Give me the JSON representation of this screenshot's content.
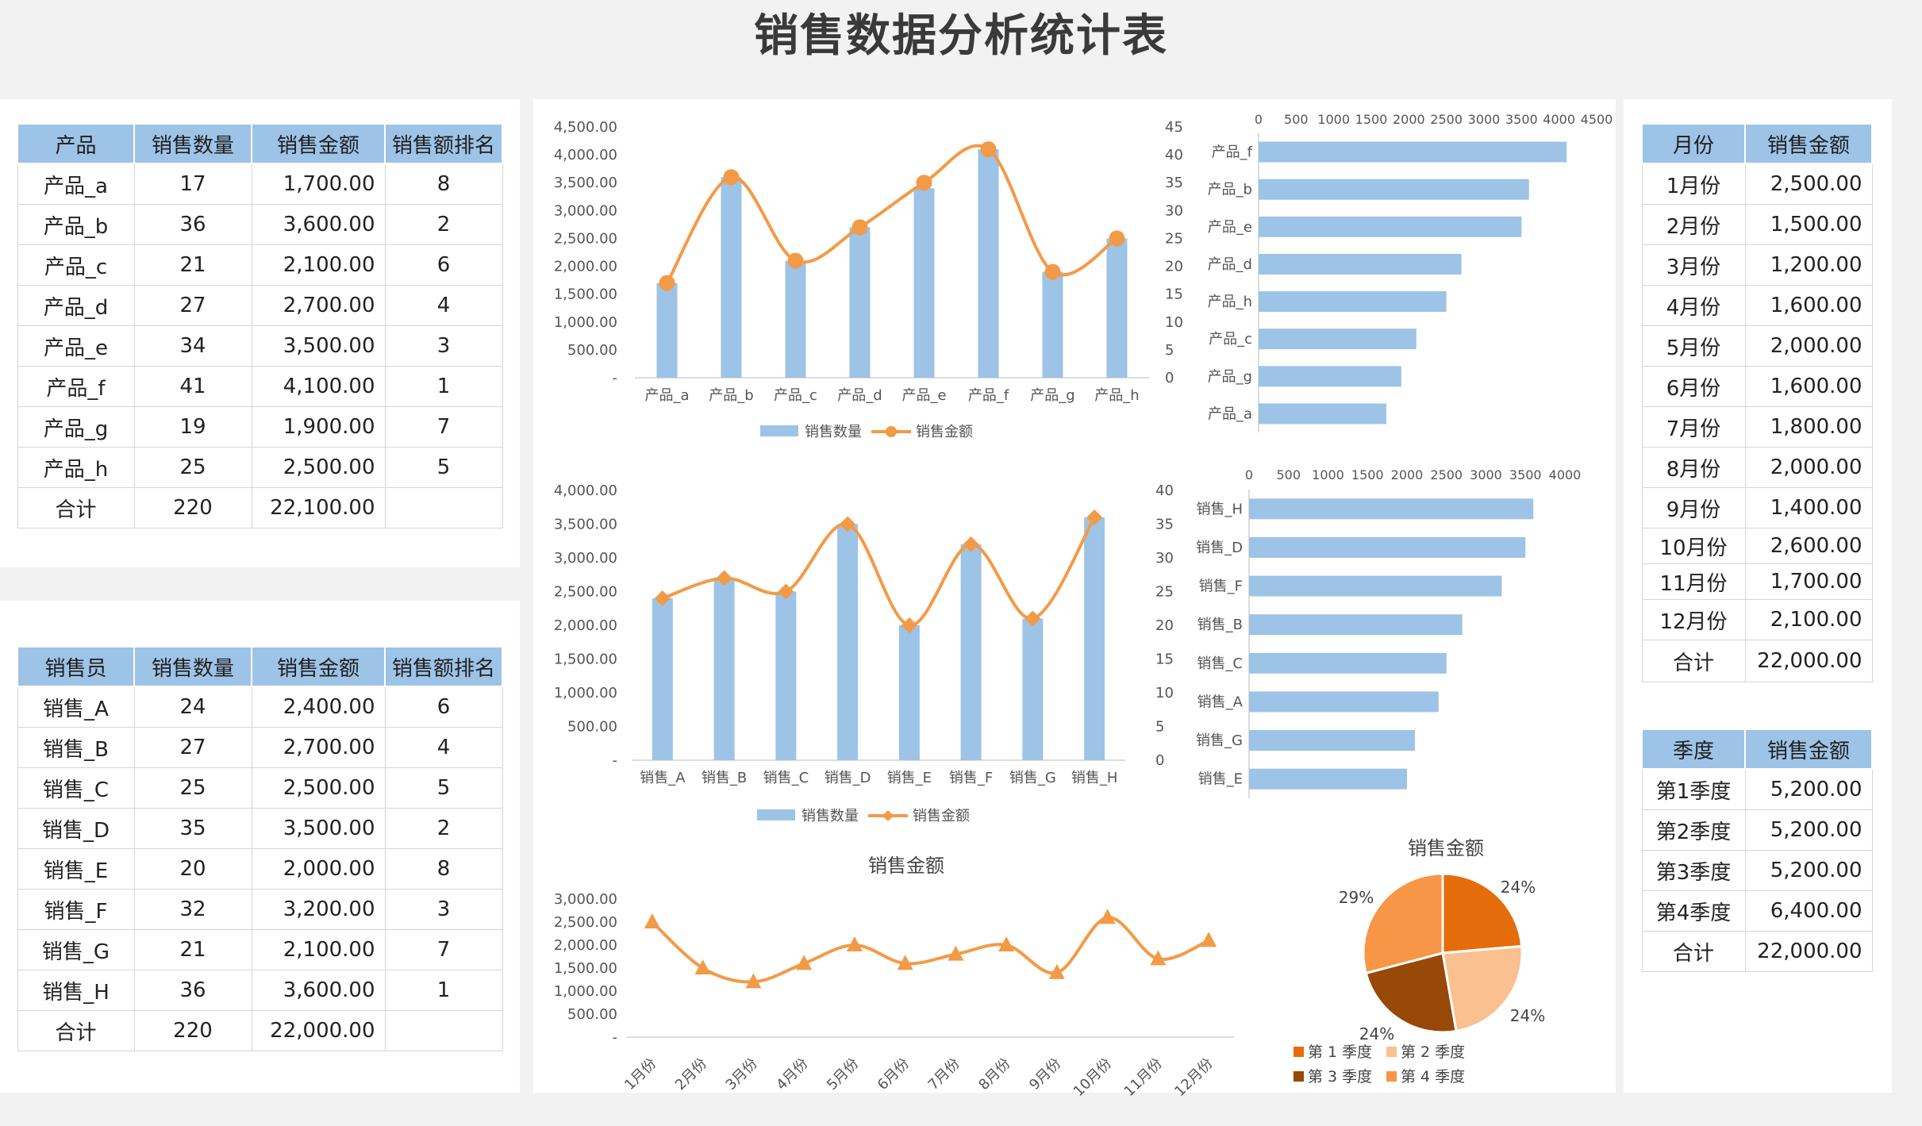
{
  "title": "销售数据分析统计表",
  "product_table": {
    "headers": [
      "产品",
      "销售数量",
      "销售金额",
      "销售额排名"
    ],
    "rows": [
      [
        "产品_a",
        "17",
        "1,700.00",
        "8"
      ],
      [
        "产品_b",
        "36",
        "3,600.00",
        "2"
      ],
      [
        "产品_c",
        "21",
        "2,100.00",
        "6"
      ],
      [
        "产品_d",
        "27",
        "2,700.00",
        "4"
      ],
      [
        "产品_e",
        "34",
        "3,500.00",
        "3"
      ],
      [
        "产品_f",
        "41",
        "4,100.00",
        "1"
      ],
      [
        "产品_g",
        "19",
        "1,900.00",
        "7"
      ],
      [
        "产品_h",
        "25",
        "2,500.00",
        "5"
      ],
      [
        "合计",
        "220",
        "22,100.00",
        ""
      ]
    ]
  },
  "sales_table": {
    "headers": [
      "销售员",
      "销售数量",
      "销售金额",
      "销售额排名"
    ],
    "rows": [
      [
        "销售_A",
        "24",
        "2,400.00",
        "6"
      ],
      [
        "销售_B",
        "27",
        "2,700.00",
        "4"
      ],
      [
        "销售_C",
        "25",
        "2,500.00",
        "5"
      ],
      [
        "销售_D",
        "35",
        "3,500.00",
        "2"
      ],
      [
        "销售_E",
        "20",
        "2,000.00",
        "8"
      ],
      [
        "销售_F",
        "32",
        "3,200.00",
        "3"
      ],
      [
        "销售_G",
        "21",
        "2,100.00",
        "7"
      ],
      [
        "销售_H",
        "36",
        "3,600.00",
        "1"
      ],
      [
        "合计",
        "220",
        "22,000.00",
        ""
      ]
    ]
  },
  "month_table": {
    "headers": [
      "月份",
      "销售金额"
    ],
    "rows": [
      [
        "1月份",
        "2,500.00"
      ],
      [
        "2月份",
        "1,500.00"
      ],
      [
        "3月份",
        "1,200.00"
      ],
      [
        "4月份",
        "1,600.00"
      ],
      [
        "5月份",
        "2,000.00"
      ],
      [
        "6月份",
        "1,600.00"
      ],
      [
        "7月份",
        "1,800.00"
      ],
      [
        "8月份",
        "2,000.00"
      ],
      [
        "9月份",
        "1,400.00"
      ],
      [
        "10月份",
        "2,600.00"
      ],
      [
        "11月份",
        "1,700.00"
      ],
      [
        "12月份",
        "2,100.00"
      ],
      [
        "合计",
        "22,000.00"
      ]
    ]
  },
  "quarter_table": {
    "headers": [
      "季度",
      "销售金额"
    ],
    "rows": [
      [
        "第1季度",
        "5,200.00"
      ],
      [
        "第2季度",
        "5,200.00"
      ],
      [
        "第3季度",
        "5,200.00"
      ],
      [
        "第4季度",
        "6,400.00"
      ],
      [
        "合计",
        "22,000.00"
      ]
    ]
  },
  "colors": {
    "bar": "#9dc3e6",
    "line": "#f4a460",
    "line_stroke": "#f39a47",
    "header": "#9dc3e6",
    "q1": "#e46c0a",
    "q2": "#fac090",
    "q3": "#984807",
    "q4": "#f79646"
  },
  "chart_data": [
    {
      "type": "bar+line",
      "title": "",
      "categories": [
        "产品_a",
        "产品_b",
        "产品_c",
        "产品_d",
        "产品_e",
        "产品_f",
        "产品_g",
        "产品_h"
      ],
      "series": [
        {
          "name": "销售数量",
          "type": "bar",
          "values": [
            17,
            36,
            21,
            27,
            34,
            41,
            19,
            25
          ]
        },
        {
          "name": "销售金额",
          "type": "line",
          "values": [
            1700,
            3600,
            2100,
            2700,
            3500,
            4100,
            1900,
            2500
          ]
        }
      ],
      "y_left_ticks": [
        "-",
        "500.00",
        "1,000.00",
        "1,500.00",
        "2,000.00",
        "2,500.00",
        "3,000.00",
        "3,500.00",
        "4,000.00",
        "4,500.00"
      ],
      "y_right_ticks": [
        "0",
        "5",
        "10",
        "15",
        "20",
        "25",
        "30",
        "35",
        "40",
        "45"
      ],
      "ylim_left": [
        0,
        4500
      ],
      "ylim_right": [
        0,
        45
      ],
      "legend": "bottom"
    },
    {
      "type": "bar",
      "orientation": "horizontal",
      "categories": [
        "产品_f",
        "产品_b",
        "产品_e",
        "产品_d",
        "产品_h",
        "产品_c",
        "产品_g",
        "产品_a"
      ],
      "values": [
        4100,
        3600,
        3500,
        2700,
        2500,
        2100,
        1900,
        1700
      ],
      "x_ticks": [
        "0",
        "500",
        "1000",
        "1500",
        "2000",
        "2500",
        "3000",
        "3500",
        "4000",
        "4500"
      ],
      "xlim": [
        0,
        4500
      ]
    },
    {
      "type": "bar+line",
      "title": "",
      "categories": [
        "销售_A",
        "销售_B",
        "销售_C",
        "销售_D",
        "销售_E",
        "销售_F",
        "销售_G",
        "销售_H"
      ],
      "series": [
        {
          "name": "销售数量",
          "type": "bar",
          "values": [
            24,
            27,
            25,
            35,
            20,
            32,
            21,
            36
          ]
        },
        {
          "name": "销售金额",
          "type": "line",
          "values": [
            2400,
            2700,
            2500,
            3500,
            2000,
            3200,
            2100,
            3600
          ]
        }
      ],
      "y_left_ticks": [
        "-",
        "500.00",
        "1,000.00",
        "1,500.00",
        "2,000.00",
        "2,500.00",
        "3,000.00",
        "3,500.00",
        "4,000.00"
      ],
      "y_right_ticks": [
        "0",
        "5",
        "10",
        "15",
        "20",
        "25",
        "30",
        "35",
        "40"
      ],
      "ylim_left": [
        0,
        4000
      ],
      "ylim_right": [
        0,
        40
      ],
      "legend": "bottom"
    },
    {
      "type": "bar",
      "orientation": "horizontal",
      "categories": [
        "销售_H",
        "销售_D",
        "销售_F",
        "销售_B",
        "销售_C",
        "销售_A",
        "销售_G",
        "销售_E"
      ],
      "values": [
        3600,
        3500,
        3200,
        2700,
        2500,
        2400,
        2100,
        2000
      ],
      "x_ticks": [
        "0",
        "500",
        "1000",
        "1500",
        "2000",
        "2500",
        "3000",
        "3500",
        "4000"
      ],
      "xlim": [
        0,
        4000
      ]
    },
    {
      "type": "line",
      "title": "销售金额",
      "categories": [
        "1月份",
        "2月份",
        "3月份",
        "4月份",
        "5月份",
        "6月份",
        "7月份",
        "8月份",
        "9月份",
        "10月份",
        "11月份",
        "12月份"
      ],
      "values": [
        2500,
        1500,
        1200,
        1600,
        2000,
        1600,
        1800,
        2000,
        1400,
        2600,
        1700,
        2100
      ],
      "y_ticks": [
        "-",
        "500.00",
        "1,000.00",
        "1,500.00",
        "2,000.00",
        "2,500.00",
        "3,000.00"
      ],
      "ylim": [
        0,
        3000
      ]
    },
    {
      "type": "pie",
      "title": "销售金额",
      "labels": [
        "第 1 季度",
        "第 2 季度",
        "第 3 季度",
        "第 4 季度"
      ],
      "values": [
        5200,
        5200,
        5200,
        6400
      ],
      "percent_labels": [
        "24%",
        "24%",
        "24%",
        "29%"
      ],
      "legend": "bottom"
    }
  ]
}
